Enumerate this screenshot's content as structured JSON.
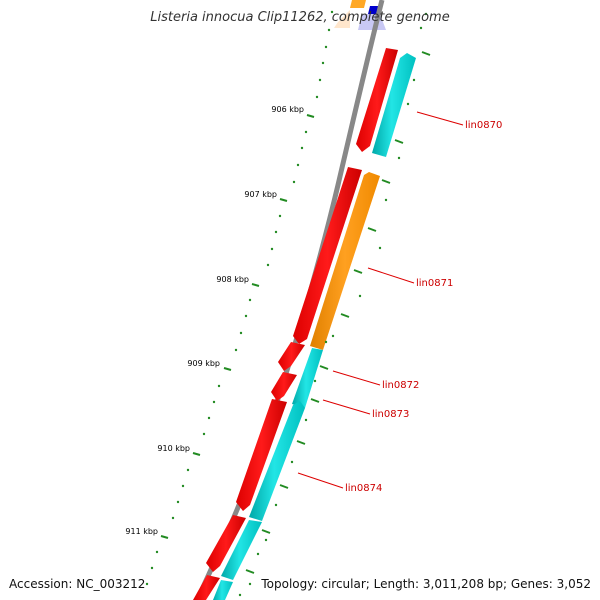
{
  "title": "Listeria innocua Clip11262, complete genome",
  "footer": {
    "accession": "Accession: NC_003212",
    "topology": "Topology: circular; Length: 3,011,208 bp; Genes: 3,052"
  },
  "colors": {
    "backbone": "#888888",
    "red_cds": "#ff0000",
    "cyan_cds": "#00dddd",
    "orange_cds": "#ff9900",
    "blue_feature": "#0000cc",
    "label": "#cc0000",
    "tick": "#228b22",
    "tick_label": "#000000"
  },
  "scale_labels": [
    "906 kbp",
    "907 kbp",
    "908 kbp",
    "909 kbp",
    "910 kbp",
    "911 kbp"
  ],
  "gene_labels": [
    "lin0870",
    "lin0871",
    "lin0872",
    "lin0873",
    "lin0874"
  ]
}
